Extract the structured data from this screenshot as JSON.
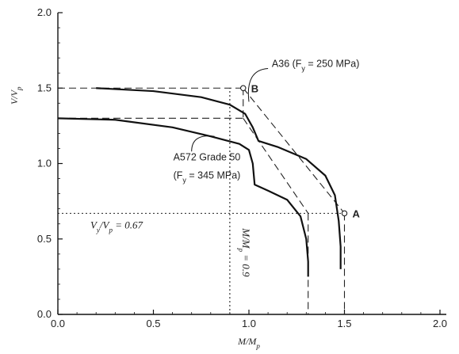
{
  "chart_data": {
    "type": "line",
    "xlabel": "M/M_p",
    "ylabel": "V/V_p",
    "xlim": [
      0,
      2
    ],
    "ylim": [
      0,
      2
    ],
    "x_ticks": [
      "0.0",
      "0.5",
      "1.0",
      "1.5",
      "2.0"
    ],
    "y_ticks": [
      "0.0",
      "0.5",
      "1.0",
      "1.5",
      "2.0"
    ],
    "grid": false,
    "series": [
      {
        "name": "A36 (F_y = 250 MPa)",
        "style": "solid",
        "points": [
          [
            0.2,
            1.5
          ],
          [
            0.5,
            1.48
          ],
          [
            0.75,
            1.44
          ],
          [
            0.9,
            1.39
          ],
          [
            0.98,
            1.33
          ],
          [
            1.02,
            1.24
          ],
          [
            1.05,
            1.15
          ],
          [
            1.15,
            1.11
          ],
          [
            1.3,
            1.03
          ],
          [
            1.4,
            0.92
          ],
          [
            1.45,
            0.79
          ],
          [
            1.47,
            0.62
          ],
          [
            1.48,
            0.45
          ],
          [
            1.48,
            0.3
          ]
        ]
      },
      {
        "name": "A572 Grade 50 (F_y = 345 MPa)",
        "style": "solid",
        "points": [
          [
            0.0,
            1.3
          ],
          [
            0.3,
            1.29
          ],
          [
            0.6,
            1.24
          ],
          [
            0.8,
            1.18
          ],
          [
            0.95,
            1.13
          ],
          [
            1.0,
            1.09
          ],
          [
            1.02,
            1.0
          ],
          [
            1.03,
            0.86
          ],
          [
            1.1,
            0.82
          ],
          [
            1.2,
            0.76
          ],
          [
            1.27,
            0.65
          ],
          [
            1.3,
            0.5
          ],
          [
            1.31,
            0.35
          ],
          [
            1.31,
            0.25
          ]
        ]
      }
    ],
    "dashed_lines": [
      {
        "from": [
          0.0,
          1.5
        ],
        "to": [
          0.97,
          1.5
        ]
      },
      {
        "from": [
          0.0,
          1.3
        ],
        "to": [
          0.97,
          1.3
        ]
      },
      {
        "from": [
          0.97,
          1.5
        ],
        "to": [
          1.5,
          0.67
        ]
      },
      {
        "from": [
          0.97,
          1.3
        ],
        "to": [
          1.31,
          0.67
        ]
      },
      {
        "from": [
          0.97,
          1.5
        ],
        "to": [
          0.97,
          1.3
        ]
      },
      {
        "from": [
          1.31,
          0.67
        ],
        "to": [
          1.31,
          0.0
        ]
      },
      {
        "from": [
          1.5,
          0.67
        ],
        "to": [
          1.5,
          0.0
        ]
      }
    ],
    "dotted_lines": [
      {
        "from": [
          0.0,
          0.67
        ],
        "to": [
          1.5,
          0.67
        ]
      },
      {
        "from": [
          0.9,
          0.0
        ],
        "to": [
          0.9,
          1.5
        ]
      }
    ],
    "points": [
      {
        "label": "B",
        "x": 0.97,
        "y": 1.5
      },
      {
        "label": "A",
        "x": 1.5,
        "y": 0.67
      }
    ],
    "annotations": {
      "a36": "A36 (F_y = 250 MPa)",
      "a572_line1": "A572 Grade 50",
      "a572_line2": "(F_y = 345 MPa)",
      "vp_ratio": "V_y/V_p = 0.67",
      "mp_ratio": "M/M_p = 0.9"
    }
  }
}
